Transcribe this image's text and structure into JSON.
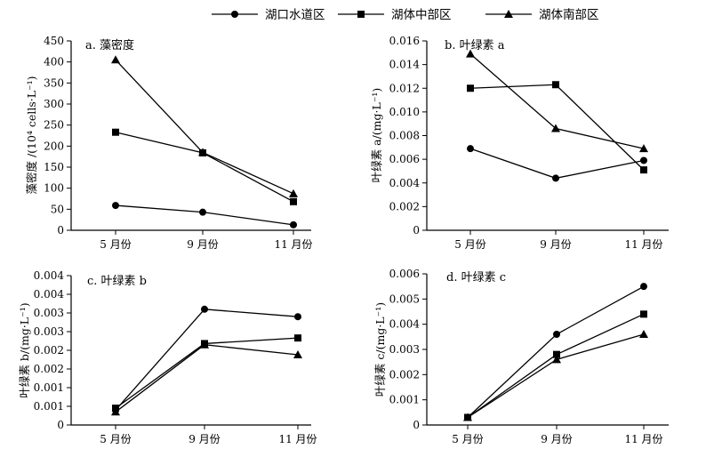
{
  "legend": {
    "items": [
      {
        "name": "湖口水道区",
        "marker": "circle"
      },
      {
        "name": "湖体中部区",
        "marker": "square"
      },
      {
        "name": "湖体南部区",
        "marker": "triangle"
      }
    ]
  },
  "chart_data": [
    {
      "type": "line",
      "title": "a. 藻密度",
      "ylabel": "藻密度 /(10⁴ cells·L⁻¹)",
      "xlabel": "",
      "categories": [
        "5 月份",
        "9 月份",
        "11 月份"
      ],
      "ylim": [
        0,
        450
      ],
      "yticks": [
        0,
        50,
        100,
        150,
        200,
        250,
        300,
        350,
        400,
        450
      ],
      "ytick_labels": [
        "0",
        "50",
        "100",
        "150",
        "200",
        "250",
        "300",
        "350",
        "400",
        "450"
      ],
      "series": [
        {
          "name": "湖口水道区",
          "values": [
            59,
            43,
            13
          ]
        },
        {
          "name": "湖体中部区",
          "values": [
            233,
            184,
            68
          ]
        },
        {
          "name": "湖体南部区",
          "values": [
            405,
            185,
            87
          ]
        }
      ]
    },
    {
      "type": "line",
      "title": "b. 叶绿素 a",
      "ylabel": "叶绿素 a/(mg·L⁻¹)",
      "xlabel": "",
      "categories": [
        "5 月份",
        "9 月份",
        "11 月份"
      ],
      "ylim": [
        0,
        0.016
      ],
      "yticks": [
        0,
        0.002,
        0.004,
        0.006,
        0.008,
        0.01,
        0.012,
        0.014,
        0.016
      ],
      "ytick_labels": [
        "0",
        "0.002",
        "0.004",
        "0.006",
        "0.008",
        "0.010",
        "0.012",
        "0.014",
        "0.016"
      ],
      "series": [
        {
          "name": "湖口水道区",
          "values": [
            0.0069,
            0.0044,
            0.0059
          ]
        },
        {
          "name": "湖体中部区",
          "values": [
            0.012,
            0.0123,
            0.0051
          ]
        },
        {
          "name": "湖体南部区",
          "values": [
            0.0149,
            0.0086,
            0.0069
          ]
        }
      ]
    },
    {
      "type": "line",
      "title": "c. 叶绿素 b",
      "ylabel": "叶绿素 b/(mg·L⁻¹)",
      "xlabel": "",
      "categories": [
        "5 月份",
        "9 月份",
        "11 月份"
      ],
      "ylim": [
        0,
        0.004
      ],
      "yticks": [
        0,
        0.0005,
        0.001,
        0.0015,
        0.002,
        0.0025,
        0.003,
        0.0035,
        0.004
      ],
      "ytick_labels": [
        "0",
        "0.001",
        "0.001",
        "0.002",
        "0.002",
        "0.003",
        "0.003",
        "0.004",
        "0.004"
      ],
      "series": [
        {
          "name": "湖口水道区",
          "values": [
            0.0004,
            0.0031,
            0.0029
          ]
        },
        {
          "name": "湖体中部区",
          "values": [
            0.00045,
            0.00218,
            0.00233
          ]
        },
        {
          "name": "湖体南部区",
          "values": [
            0.00035,
            0.00215,
            0.00188
          ]
        }
      ]
    },
    {
      "type": "line",
      "title": "d. 叶绿素 c",
      "ylabel": "叶绿素 c/(mg·L⁻¹)",
      "xlabel": "",
      "categories": [
        "5 月份",
        "9 月份",
        "11 月份"
      ],
      "ylim": [
        0,
        0.006
      ],
      "yticks": [
        0,
        0.001,
        0.002,
        0.003,
        0.004,
        0.005,
        0.006
      ],
      "ytick_labels": [
        "0",
        "0.001",
        "0.002",
        "0.003",
        "0.004",
        "0.005",
        "0.006"
      ],
      "series": [
        {
          "name": "湖口水道区",
          "values": [
            0.0003,
            0.0036,
            0.0055
          ]
        },
        {
          "name": "湖体中部区",
          "values": [
            0.0003,
            0.0028,
            0.0044
          ]
        },
        {
          "name": "湖体南部区",
          "values": [
            0.0003,
            0.0026,
            0.0036
          ]
        }
      ]
    }
  ]
}
